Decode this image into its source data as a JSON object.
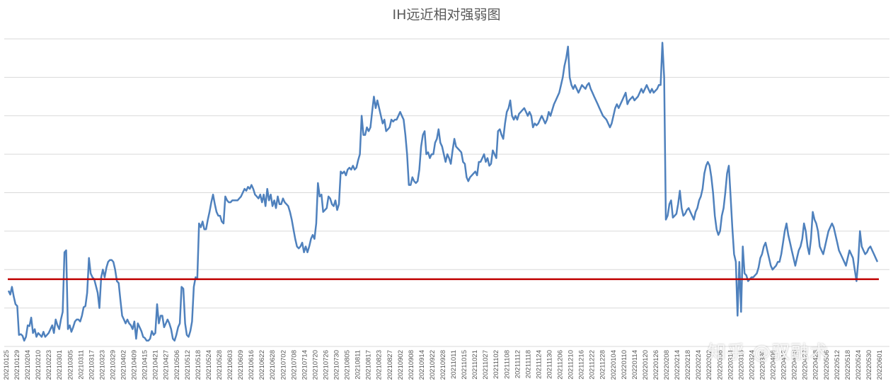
{
  "chart_data": {
    "type": "line",
    "title": "IH远近相对强弱图",
    "xlabel": "",
    "ylabel": "",
    "y_tick_labels_shown": false,
    "grid": "horizontal",
    "ylim": [
      0,
      80
    ],
    "x_tick_labels": [
      "20210125",
      "20210129",
      "20210204",
      "20210210",
      "20210223",
      "20210301",
      "20210305",
      "20210311",
      "20210317",
      "20210323",
      "20210329",
      "20210402",
      "20210409",
      "20210415",
      "20210421",
      "20210427",
      "20210506",
      "20210512",
      "20210518",
      "20210524",
      "20210528",
      "20210603",
      "20210609",
      "20210616",
      "20210622",
      "20210628",
      "20210702",
      "20210708",
      "20210714",
      "20210720",
      "20210726",
      "20210730",
      "20210805",
      "20210811",
      "20210817",
      "20210823",
      "20210827",
      "20210902",
      "20210908",
      "20210914",
      "20210922",
      "20210928",
      "20211011",
      "20211015",
      "20211021",
      "20211027",
      "20211102",
      "20211108",
      "20211112",
      "20211118",
      "20211124",
      "20211130",
      "20211206",
      "20211210",
      "20211216",
      "20211222",
      "20211228",
      "20220104",
      "20220110",
      "20220114",
      "20220120",
      "20220126",
      "20220208",
      "20220214",
      "20220218",
      "20220224",
      "20220302",
      "20220308",
      "20220314",
      "20220318",
      "20220324",
      "20220330",
      "20220406",
      "20220412",
      "20220418",
      "20220422",
      "20220428",
      "20220506",
      "20220512",
      "20220518",
      "20220524",
      "20220530",
      "20220601"
    ],
    "series": [
      {
        "color": "#4f81bd",
        "values": [
          14.5,
          13.5,
          15.5,
          13,
          11,
          10.5,
          3,
          3.2,
          2.8,
          1.5,
          2.5,
          5.5,
          5.3,
          7.5,
          3.5,
          4.5,
          2.5,
          3.5,
          3,
          2.5,
          3.8,
          2.5,
          3,
          3.5,
          4.5,
          5.5,
          3.5,
          7,
          5.5,
          4.5,
          7,
          9,
          24.5,
          25,
          4.5,
          5.5,
          3.8,
          5,
          6.5,
          7,
          7,
          6.5,
          8,
          10.2,
          10.5,
          14,
          23,
          19,
          18,
          17.5,
          15.8,
          14,
          10,
          18,
          20,
          18,
          20.5,
          22,
          22.5,
          22.5,
          22,
          20,
          17,
          16.5,
          12.2,
          8,
          7,
          6,
          7,
          6,
          5.5,
          4.5,
          6.5,
          2,
          6,
          5,
          4,
          2.5,
          2.2,
          1.5,
          1.5,
          2,
          4,
          3,
          3.5,
          11,
          6,
          8,
          8,
          5,
          6,
          7,
          6,
          4.5,
          2,
          1.5,
          3,
          5,
          6,
          15.5,
          15,
          6,
          3,
          2.5,
          4,
          6.5,
          15.5,
          18,
          17.5,
          32,
          31,
          32.5,
          30.5,
          30.5,
          33,
          35,
          37.5,
          39.5,
          37,
          35,
          34,
          34,
          32.5,
          32,
          39,
          38,
          37.5,
          37.5,
          38,
          38,
          38,
          38,
          38.5,
          39,
          40,
          41,
          40.5,
          41.5,
          41,
          42,
          41,
          39.5,
          39,
          38.5,
          39.5,
          37.5,
          39.5,
          36.5,
          41,
          38,
          39.5,
          36.5,
          38,
          36,
          39,
          37,
          37,
          38.5,
          37.5,
          37,
          36.5,
          35,
          33,
          30.5,
          28,
          26,
          25.5,
          26,
          27,
          24.5,
          26,
          24.5,
          26,
          28,
          29,
          28,
          32,
          42.5,
          39,
          39.5,
          35,
          35.5,
          36,
          39,
          38.5,
          37,
          36.5,
          38,
          35.5,
          37,
          45.5,
          45,
          45.5,
          44.5,
          46,
          46.5,
          46,
          47,
          46,
          46.5,
          48.5,
          50,
          60,
          55,
          55,
          57,
          56,
          57,
          61,
          65,
          62,
          64,
          62,
          60,
          58,
          59,
          56,
          56.5,
          57,
          59,
          58.5,
          59,
          59,
          60,
          61,
          60,
          59,
          55,
          50,
          42,
          42,
          44,
          43,
          42.5,
          43,
          46,
          52,
          55,
          56,
          50,
          50.5,
          49,
          50,
          50,
          53,
          54,
          56.5,
          53,
          52,
          50,
          48,
          50,
          49,
          47.5,
          51,
          54,
          52,
          51.5,
          51,
          50.5,
          48,
          47.5,
          44,
          43,
          44,
          44.5,
          45,
          45.5,
          44.5,
          48,
          48,
          49,
          50,
          48,
          49,
          47,
          47.5,
          51,
          50,
          49,
          56,
          56.5,
          55,
          54,
          58,
          61,
          62,
          64,
          60,
          59,
          60,
          59,
          60.5,
          61,
          61.5,
          62,
          61,
          60,
          61,
          60,
          57,
          58,
          57.5,
          58,
          59,
          60,
          59,
          58,
          59,
          61,
          60,
          61.5,
          63,
          64,
          65,
          66,
          68,
          70,
          73,
          75,
          78,
          70,
          68,
          67,
          68,
          67,
          66,
          67,
          68,
          67.5,
          67,
          68,
          68.5,
          67,
          66,
          65,
          64,
          63,
          62,
          61,
          60,
          59.5,
          59,
          58,
          57,
          58,
          60,
          62,
          63,
          62,
          63,
          64,
          65,
          66,
          63,
          64,
          64.5,
          65,
          64,
          64.5,
          65,
          66,
          67,
          66,
          67,
          68,
          67,
          66,
          67,
          66,
          66.5,
          67,
          68,
          68,
          79,
          70,
          33,
          34,
          37,
          38,
          33.5,
          34,
          34.5,
          37,
          40.5,
          36,
          34,
          34.5,
          35.5,
          36,
          35,
          34,
          33,
          35,
          36,
          38,
          39,
          41,
          45,
          47,
          48,
          47,
          44,
          40,
          34,
          30.5,
          29,
          30,
          34,
          36,
          40,
          45,
          47,
          39,
          31,
          24,
          22,
          8,
          22,
          9,
          26,
          19,
          18.5,
          17,
          17.5,
          18,
          18,
          18.5,
          19,
          20.5,
          23,
          24,
          26,
          27,
          25,
          23,
          21,
          20,
          20.5,
          21,
          22,
          22,
          24,
          27,
          30,
          32,
          29,
          27,
          25,
          23,
          21,
          23,
          25,
          26,
          28,
          32,
          30,
          26,
          24,
          28,
          35,
          33,
          32,
          30,
          26,
          25,
          24,
          26,
          28,
          30,
          31,
          32,
          31,
          29,
          27,
          25,
          24,
          23,
          22,
          21,
          23,
          25,
          24,
          23,
          20,
          17,
          22,
          30,
          26,
          25,
          24,
          24.5,
          25.5,
          26,
          25,
          24,
          23,
          22
        ]
      }
    ],
    "reference_line": {
      "color": "#c00000",
      "value": 17.5
    }
  },
  "watermark": "知乎 @驭融术"
}
